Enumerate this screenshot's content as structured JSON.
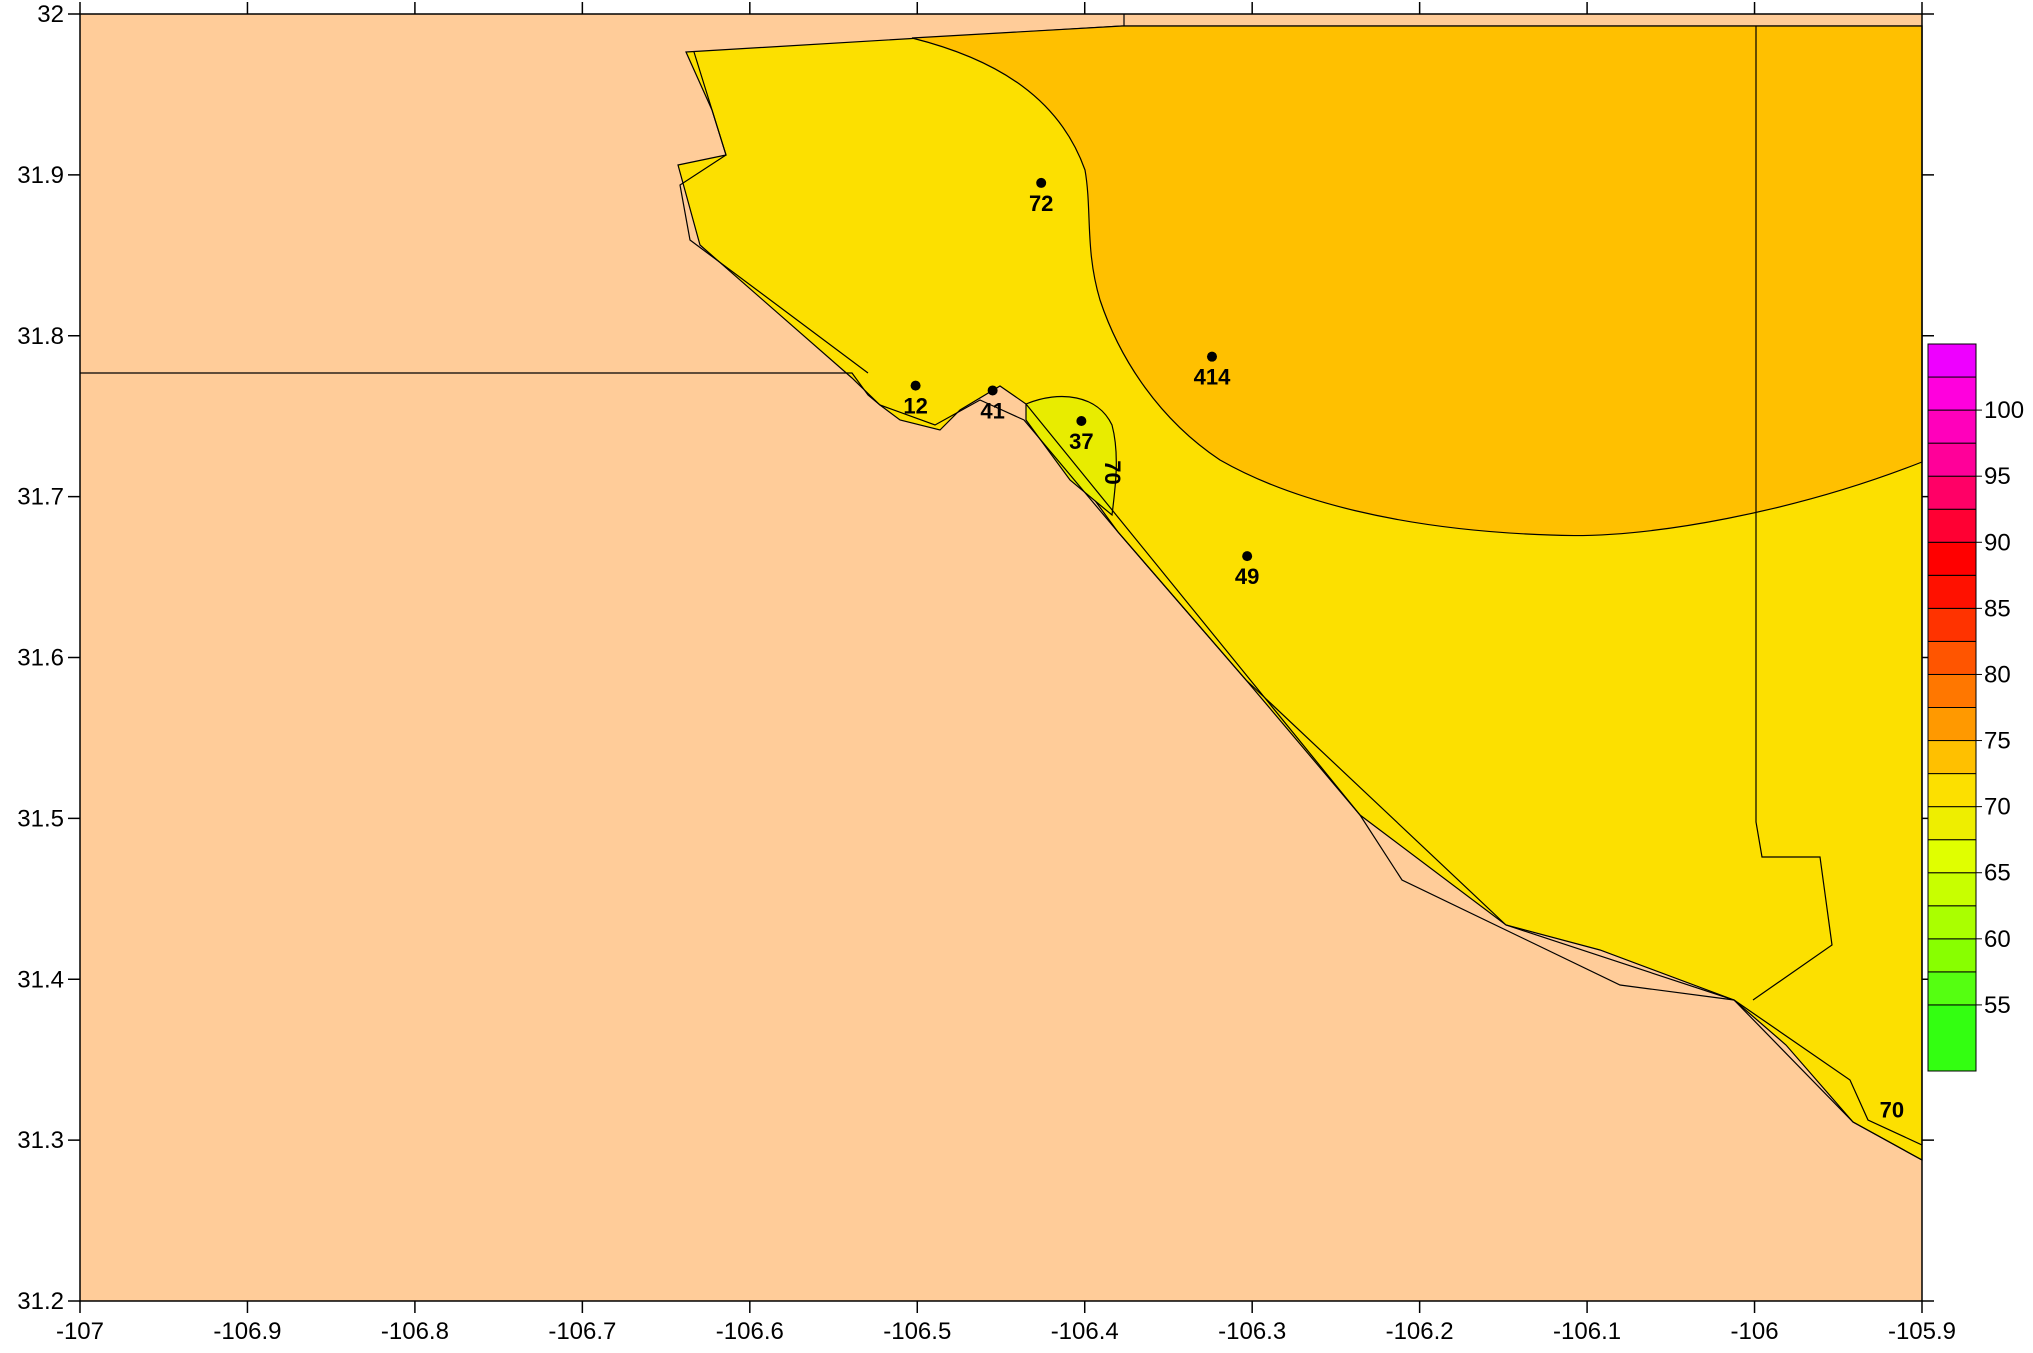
{
  "map": {
    "xlim": [
      -107,
      -105.9
    ],
    "ylim": [
      31.2,
      32.0
    ],
    "colors": {
      "background_zone": "#FFCC99",
      "zone_70_75": "#FCE000",
      "zone_75_80": "#FFC000",
      "zone_65_70": "#E8EC00",
      "outline": "#000000"
    },
    "x_ticks": [
      {
        "value": -107,
        "label": "-107"
      },
      {
        "value": -106.9,
        "label": "-106.9"
      },
      {
        "value": -106.8,
        "label": "-106.8"
      },
      {
        "value": -106.7,
        "label": "-106.7"
      },
      {
        "value": -106.6,
        "label": "-106.6"
      },
      {
        "value": -106.5,
        "label": "-106.5"
      },
      {
        "value": -106.4,
        "label": "-106.4"
      },
      {
        "value": -106.3,
        "label": "-106.3"
      },
      {
        "value": -106.2,
        "label": "-106.2"
      },
      {
        "value": -106.1,
        "label": "-106.1"
      },
      {
        "value": -106,
        "label": "-106"
      },
      {
        "value": -105.9,
        "label": "-105.9"
      }
    ],
    "y_ticks": [
      {
        "value": 32.0,
        "label": "32"
      },
      {
        "value": 31.9,
        "label": "31.9"
      },
      {
        "value": 31.8,
        "label": "31.8"
      },
      {
        "value": 31.7,
        "label": "31.7"
      },
      {
        "value": 31.6,
        "label": "31.6"
      },
      {
        "value": 31.5,
        "label": "31.5"
      },
      {
        "value": 31.4,
        "label": "31.4"
      },
      {
        "value": 31.3,
        "label": "31.3"
      },
      {
        "value": 31.2,
        "label": "31.2"
      }
    ],
    "stations": [
      {
        "label": "72",
        "lon": -106.426,
        "lat": 31.895
      },
      {
        "label": "414",
        "lon": -106.324,
        "lat": 31.787
      },
      {
        "label": "12",
        "lon": -106.501,
        "lat": 31.769
      },
      {
        "label": "41",
        "lon": -106.455,
        "lat": 31.766
      },
      {
        "label": "37",
        "lon": -106.402,
        "lat": 31.747
      },
      {
        "label": "49",
        "lon": -106.303,
        "lat": 31.663
      }
    ],
    "contour_labels": [
      {
        "text": "70",
        "lon": -106.383,
        "lat": 31.715
      },
      {
        "text": "70",
        "lon": -105.918,
        "lat": 31.319
      }
    ]
  },
  "legend": {
    "bands": [
      {
        "color": "#33FF11",
        "low": 50,
        "high": 55
      },
      {
        "color": "#55FF11",
        "low": 55,
        "high": 57.5
      },
      {
        "color": "#88FF00",
        "low": 57.5,
        "high": 60
      },
      {
        "color": "#AAFF00",
        "low": 60,
        "high": 62.5
      },
      {
        "color": "#C8FF00",
        "low": 62.5,
        "high": 65
      },
      {
        "color": "#E0FF00",
        "low": 65,
        "high": 67.5
      },
      {
        "color": "#EEEE00",
        "low": 67.5,
        "high": 70
      },
      {
        "color": "#FCE000",
        "low": 70,
        "high": 72.5
      },
      {
        "color": "#FFC000",
        "low": 72.5,
        "high": 75
      },
      {
        "color": "#FF9900",
        "low": 75,
        "high": 77.5
      },
      {
        "color": "#FF7700",
        "low": 77.5,
        "high": 80
      },
      {
        "color": "#FF5500",
        "low": 80,
        "high": 82.5
      },
      {
        "color": "#FF3300",
        "low": 82.5,
        "high": 85
      },
      {
        "color": "#FF1100",
        "low": 85,
        "high": 87.5
      },
      {
        "color": "#FF0000",
        "low": 87.5,
        "high": 90
      },
      {
        "color": "#FF0033",
        "low": 90,
        "high": 92.5
      },
      {
        "color": "#FF0066",
        "low": 92.5,
        "high": 95
      },
      {
        "color": "#FF0099",
        "low": 95,
        "high": 97.5
      },
      {
        "color": "#FF00BB",
        "low": 97.5,
        "high": 100
      },
      {
        "color": "#FF00DD",
        "low": 100,
        "high": 102.5
      },
      {
        "color": "#EE00FF",
        "low": 102.5,
        "high": 105
      }
    ],
    "labels": [
      "55",
      "60",
      "65",
      "70",
      "75",
      "80",
      "85",
      "90",
      "95",
      "100"
    ]
  }
}
